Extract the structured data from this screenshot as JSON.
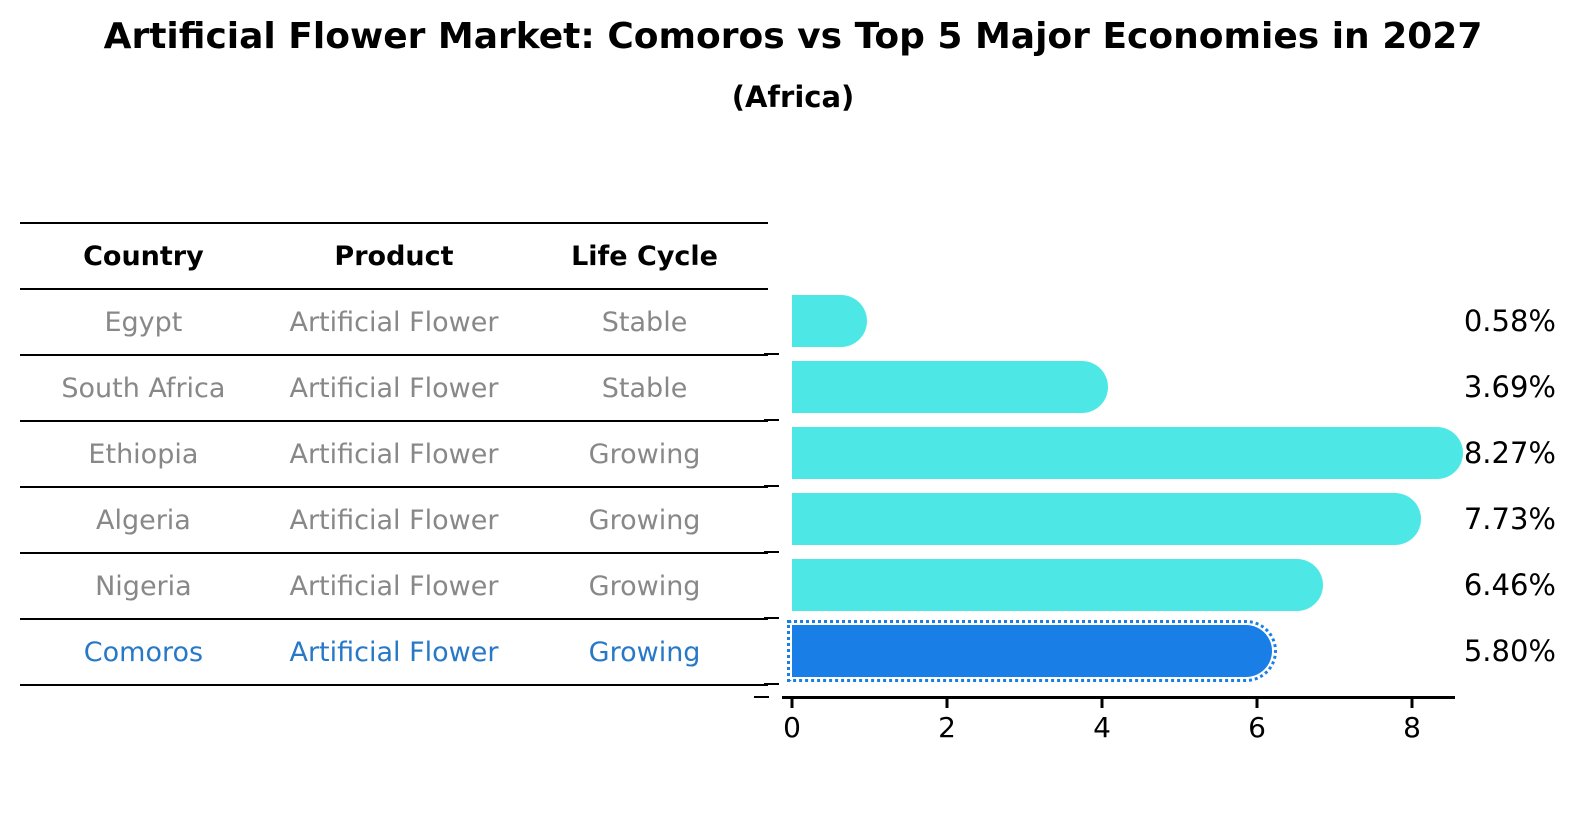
{
  "title": "Artificial Flower Market: Comoros vs Top 5 Major Economies in 2027",
  "subtitle": "(Africa)",
  "table": {
    "headers": [
      "Country",
      "Product",
      "Life Cycle"
    ],
    "rows": [
      {
        "country": "Egypt",
        "product": "Artificial Flower",
        "life_cycle": "Stable",
        "highlight": false
      },
      {
        "country": "South Africa",
        "product": "Artificial Flower",
        "life_cycle": "Stable",
        "highlight": false
      },
      {
        "country": "Ethiopia",
        "product": "Artificial Flower",
        "life_cycle": "Growing",
        "highlight": false
      },
      {
        "country": "Algeria",
        "product": "Artificial Flower",
        "life_cycle": "Growing",
        "highlight": false
      },
      {
        "country": "Nigeria",
        "product": "Artificial Flower",
        "life_cycle": "Growing",
        "highlight": false
      },
      {
        "country": "Comoros",
        "product": "Artificial Flower",
        "life_cycle": "Growing",
        "highlight": true
      }
    ]
  },
  "chart_data": {
    "type": "bar",
    "orientation": "horizontal",
    "title": "Artificial Flower Market: Comoros vs Top 5 Major Economies in 2027",
    "subtitle": "(Africa)",
    "categories": [
      "Egypt",
      "South Africa",
      "Ethiopia",
      "Algeria",
      "Nigeria",
      "Comoros"
    ],
    "values": [
      0.58,
      3.69,
      8.27,
      7.73,
      6.46,
      5.8
    ],
    "value_labels": [
      "0.58%",
      "3.69%",
      "8.27%",
      "7.73%",
      "6.46%",
      "5.80%"
    ],
    "x_ticks": [
      0,
      2,
      4,
      6,
      8
    ],
    "xlim": [
      0,
      8.7
    ],
    "grid": false,
    "legend": false,
    "highlight_category": "Comoros",
    "colors": {
      "bar": "#4DE8E6",
      "highlight_bar": "#1A7EE7",
      "highlight_text": "#2878C8",
      "row_text": "#888888",
      "axis": "#000000"
    }
  }
}
